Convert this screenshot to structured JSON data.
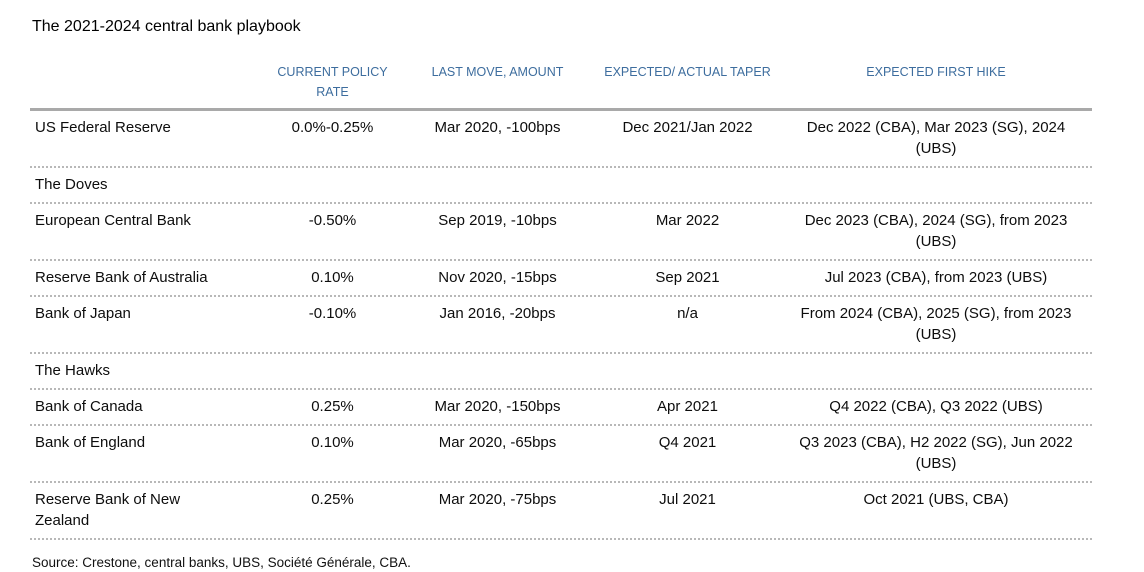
{
  "title": "The 2021-2024 central bank playbook",
  "table": {
    "header": {
      "col_bank": "",
      "col_rate": "CURRENT POLICY RATE",
      "col_last_move": "LAST MOVE, AMOUNT",
      "col_taper": "EXPECTED/ ACTUAL TAPER",
      "col_first_hike": "EXPECTED FIRST HIKE"
    },
    "rows": [
      {
        "kind": "data",
        "name": "US Federal Reserve",
        "rate": "0.0%-0.25%",
        "last_move": "Mar 2020, -100bps",
        "taper": "Dec 2021/Jan 2022",
        "first_hike": "Dec 2022 (CBA), Mar 2023 (SG), 2024 (UBS)"
      },
      {
        "kind": "section",
        "name": "The Doves"
      },
      {
        "kind": "data",
        "name": "European Central Bank",
        "rate": "-0.50%",
        "last_move": "Sep 2019, -10bps",
        "taper": "Mar 2022",
        "first_hike": "Dec 2023 (CBA), 2024 (SG), from 2023 (UBS)"
      },
      {
        "kind": "data",
        "name": "Reserve Bank of Australia",
        "rate": "0.10%",
        "last_move": "Nov 2020, -15bps",
        "taper": "Sep 2021",
        "first_hike": "Jul 2023 (CBA), from 2023 (UBS)"
      },
      {
        "kind": "data",
        "name": "Bank of Japan",
        "rate": "-0.10%",
        "last_move": "Jan 2016, -20bps",
        "taper": "n/a",
        "first_hike": "From 2024 (CBA), 2025 (SG), from 2023 (UBS)"
      },
      {
        "kind": "section",
        "name": "The Hawks"
      },
      {
        "kind": "data",
        "name": "Bank of Canada",
        "rate": "0.25%",
        "last_move": "Mar 2020, -150bps",
        "taper": "Apr 2021",
        "first_hike": "Q4 2022 (CBA), Q3 2022 (UBS)"
      },
      {
        "kind": "data",
        "name": "Bank of England",
        "rate": "0.10%",
        "last_move": "Mar 2020, -65bps",
        "taper": "Q4 2021",
        "first_hike": "Q3 2023 (CBA), H2 2022 (SG), Jun 2022 (UBS)"
      },
      {
        "kind": "data",
        "name": "Reserve Bank of New Zealand",
        "rate": "0.25%",
        "last_move": "Mar 2020, -75bps",
        "taper": "Jul 2021",
        "first_hike": "Oct 2021 (UBS, CBA)"
      }
    ]
  },
  "source": "Source: Crestone, central banks, UBS, Société Générale, CBA.",
  "colors": {
    "header_text": "#3d6d9e",
    "solid_rule": "#a9a9a9",
    "dotted_rule": "#b8b8b8",
    "body_text": "#0d0d0d"
  }
}
